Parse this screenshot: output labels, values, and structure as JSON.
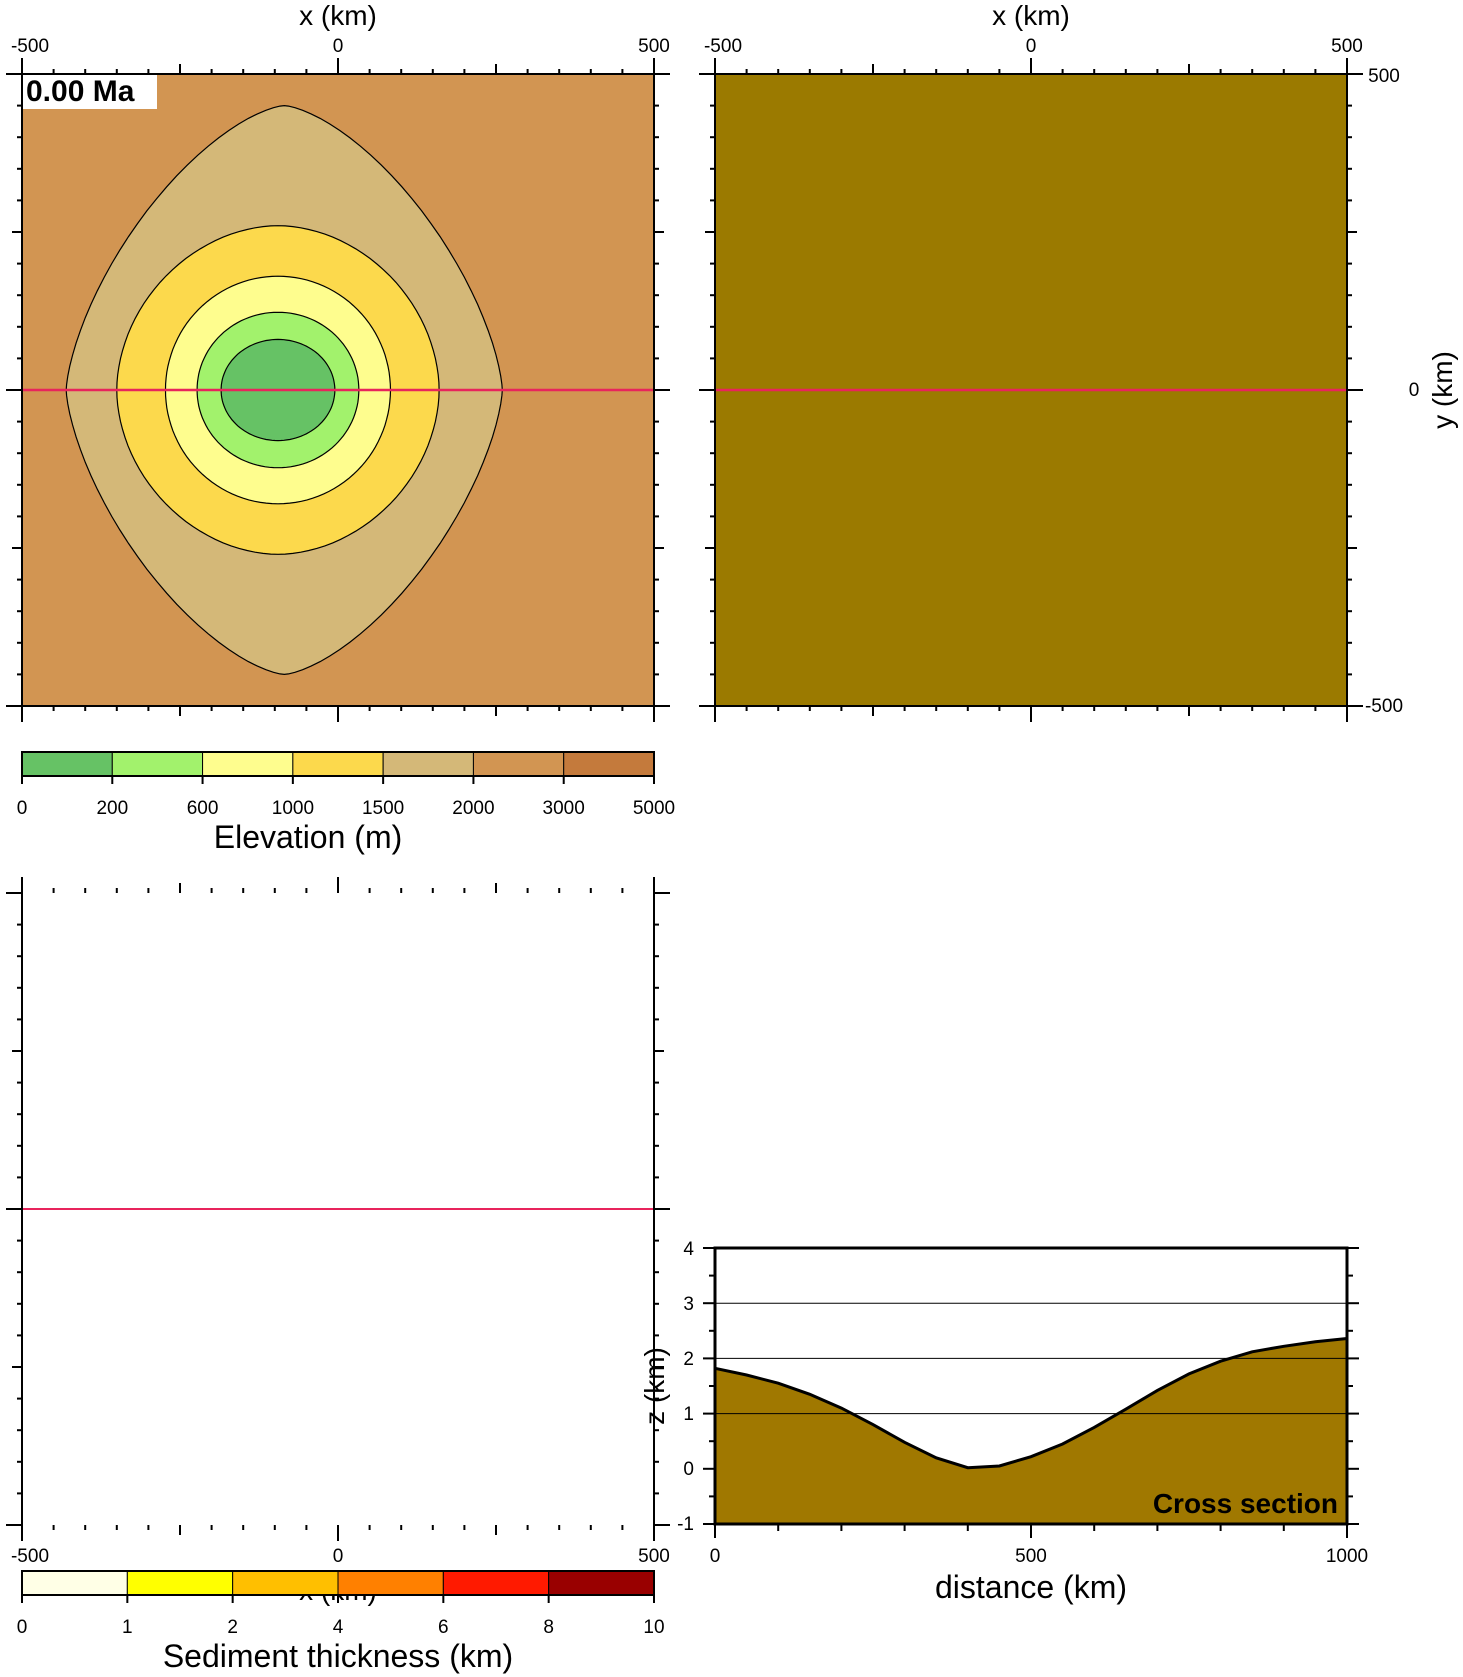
{
  "figure": {
    "time_label": "0.00 Ma",
    "profile_line_color": "#e8245c"
  },
  "chart_data": [
    {
      "id": "elevation_map",
      "type": "heatmap",
      "title": "",
      "xlabel": "x (km)",
      "ylabel": "",
      "xlim": [
        -500,
        500
      ],
      "ylim": [
        -500,
        500
      ],
      "x_ticks": [
        "-500",
        "0",
        "500"
      ],
      "profile_y": 0,
      "field": {
        "center": [
          -95,
          0
        ],
        "center_elevation": 0
      },
      "contour_levels": [
        200,
        600,
        1000,
        1500,
        2000,
        3000
      ],
      "colorbar": {
        "label": "Elevation (m)",
        "boundaries": [
          "0",
          "200",
          "600",
          "1000",
          "1500",
          "2000",
          "3000",
          "5000"
        ],
        "colors": [
          "#66c265",
          "#a2f26c",
          "#fefd8e",
          "#fcd94c",
          "#d4b878",
          "#d29552",
          "#c47a3c"
        ]
      }
    },
    {
      "id": "sediment_map",
      "type": "heatmap",
      "title": "",
      "xlabel": "",
      "ylabel": "y (km)",
      "xlim": [
        -500,
        500
      ],
      "ylim": [
        -500,
        500
      ],
      "x_ticks": [
        "-500",
        "0",
        "500"
      ],
      "y_ticks": [
        "500",
        "0",
        "-500"
      ],
      "profile_y": 0,
      "fill_color": "#9b7a00"
    },
    {
      "id": "empty_map",
      "type": "heatmap",
      "title": "",
      "xlabel": "x (km)",
      "xlim": [
        -500,
        500
      ],
      "x_ticks": [
        "-500",
        "0",
        "500"
      ],
      "profile_y": 0,
      "colorbar": {
        "label": "Sediment thickness (km)",
        "boundaries": [
          "0",
          "1",
          "2",
          "4",
          "6",
          "8",
          "10"
        ],
        "colors": [
          "#ffffe6",
          "#ffff00",
          "#ffbf00",
          "#ff8000",
          "#ff1a00",
          "#990000"
        ]
      }
    },
    {
      "id": "cross_section",
      "type": "area",
      "title": "",
      "annotation": "Cross section",
      "xlabel": "distance (km)",
      "ylabel": "z (km)",
      "xlim": [
        0,
        1000
      ],
      "ylim": [
        -1,
        4
      ],
      "x_ticks": [
        "0",
        "500",
        "1000"
      ],
      "y_ticks": [
        "4",
        "3",
        "2",
        "1",
        "0",
        "-1"
      ],
      "gridlines_y": [
        1,
        2,
        3
      ],
      "fill_color": "#a07800",
      "x": [
        0,
        50,
        100,
        150,
        200,
        250,
        300,
        350,
        400,
        450,
        500,
        550,
        600,
        650,
        700,
        750,
        800,
        850,
        900,
        950,
        1000
      ],
      "y": [
        1.82,
        1.7,
        1.55,
        1.35,
        1.1,
        0.8,
        0.48,
        0.2,
        0.02,
        0.05,
        0.22,
        0.45,
        0.75,
        1.08,
        1.42,
        1.72,
        1.95,
        2.12,
        2.22,
        2.3,
        2.36
      ]
    }
  ]
}
